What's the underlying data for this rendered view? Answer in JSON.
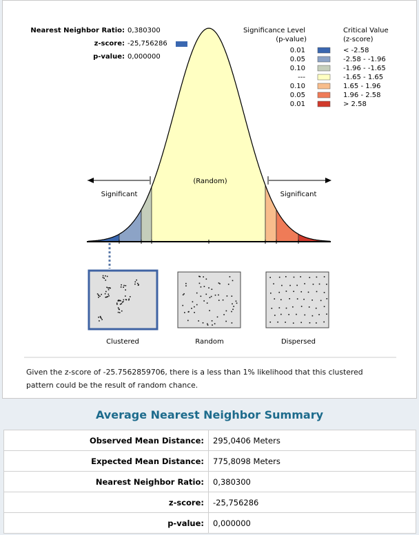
{
  "stats": [
    {
      "label": "Nearest Neighbor Ratio:",
      "value": "0,380300"
    },
    {
      "label": "z-score:",
      "value": "-25,756286"
    },
    {
      "label": "p-value:",
      "value": "0,000000"
    }
  ],
  "legend": {
    "sig_title": "Significance Level",
    "sig_sub": "(p-value)",
    "crit_title": "Critical Value",
    "crit_sub": "(z-score)",
    "rows": [
      {
        "p": "0.01",
        "z": "< -2.58",
        "color": "#3a67b0"
      },
      {
        "p": "0.05",
        "z": "-2.58 - -1.96",
        "color": "#8ca3c6"
      },
      {
        "p": "0.10",
        "z": "-1.96 - -1.65",
        "color": "#c5cebb"
      },
      {
        "p": "---",
        "z": "-1.65 - 1.65",
        "color": "#ffffc2"
      },
      {
        "p": "0.10",
        "z": "1.65 - 1.96",
        "color": "#f8bd8c"
      },
      {
        "p": "0.05",
        "z": "1.96 - 2.58",
        "color": "#ef7b57"
      },
      {
        "p": "0.01",
        "z": "> 2.58",
        "color": "#d13a2c"
      }
    ]
  },
  "curve_labels": {
    "left": "Significant",
    "center": "(Random)",
    "right": "Significant"
  },
  "patterns": [
    "Clustered",
    "Random",
    "Dispersed"
  ],
  "message": "Given the z-score of -25.7562859706, there is a less than 1% likelihood that this clustered pattern could be the result of random chance.",
  "summary": {
    "title": "Average Nearest Neighbor Summary",
    "rows": [
      [
        "Observed Mean Distance:",
        "295,0406 Meters"
      ],
      [
        "Expected Mean Distance:",
        "775,8098 Meters"
      ],
      [
        "Nearest Neighbor Ratio:",
        "0,380300"
      ],
      [
        "z-score:",
        "-25,756286"
      ],
      [
        "p-value:",
        "0,000000"
      ]
    ]
  }
}
